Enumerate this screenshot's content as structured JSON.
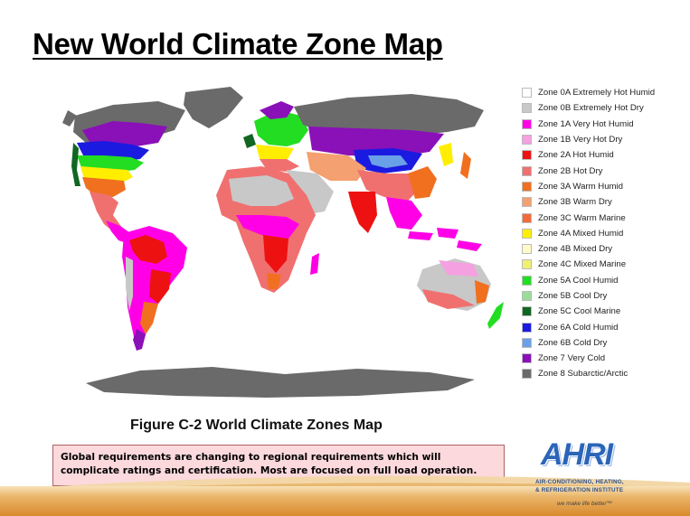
{
  "slide": {
    "title": "New World Climate Zone Map",
    "figure_caption": "Figure C-2 World Climate Zones Map",
    "note_lines": [
      "Global requirements are changing to regional requirements which will",
      "complicate ratings and certification.  Most are focused on full load operation."
    ]
  },
  "map": {
    "legend": [
      {
        "label": "Zone 0A Extremely Hot Humid",
        "color": "#ffffff"
      },
      {
        "label": "Zone 0B Extremely Hot Dry",
        "color": "#c8c8c8"
      },
      {
        "label": "Zone 1A Very Hot Humid",
        "color": "#ff00e6"
      },
      {
        "label": "Zone 1B Very Hot Dry",
        "color": "#f5a0e0"
      },
      {
        "label": "Zone 2A Hot Humid",
        "color": "#ee1111"
      },
      {
        "label": "Zone 2B Hot Dry",
        "color": "#f07070"
      },
      {
        "label": "Zone 3A Warm Humid",
        "color": "#f07020"
      },
      {
        "label": "Zone 3B Warm Dry",
        "color": "#f4a070"
      },
      {
        "label": "Zone 3C Warm Marine",
        "color": "#f26a3a"
      },
      {
        "label": "Zone 4A Mixed Humid",
        "color": "#ffee00"
      },
      {
        "label": "Zone 4B Mixed Dry",
        "color": "#fffac8"
      },
      {
        "label": "Zone 4C Mixed Marine",
        "color": "#f0f070"
      },
      {
        "label": "Zone 5A Cool Humid",
        "color": "#22dd22"
      },
      {
        "label": "Zone 5B Cool Dry",
        "color": "#9adc9a"
      },
      {
        "label": "Zone 5C Cool Marine",
        "color": "#116622"
      },
      {
        "label": "Zone 6A Cold Humid",
        "color": "#1a1ae0"
      },
      {
        "label": "Zone 6B Cold Dry",
        "color": "#6aa0e8"
      },
      {
        "label": "Zone 7 Very Cold",
        "color": "#8a10b8"
      },
      {
        "label": "Zone 8 Subarctic/Arctic",
        "color": "#6a6a6a"
      }
    ]
  },
  "logo": {
    "name": "AHRI",
    "line1": "AIR-CONDITIONING, HEATING,",
    "line2": "& REFRIGERATION INSTITUTE",
    "tagline": "we make life better™",
    "color": "#2b65b8"
  },
  "theme": {
    "band_color": "#d98a2c",
    "note_bg": "#fbd9dc"
  }
}
